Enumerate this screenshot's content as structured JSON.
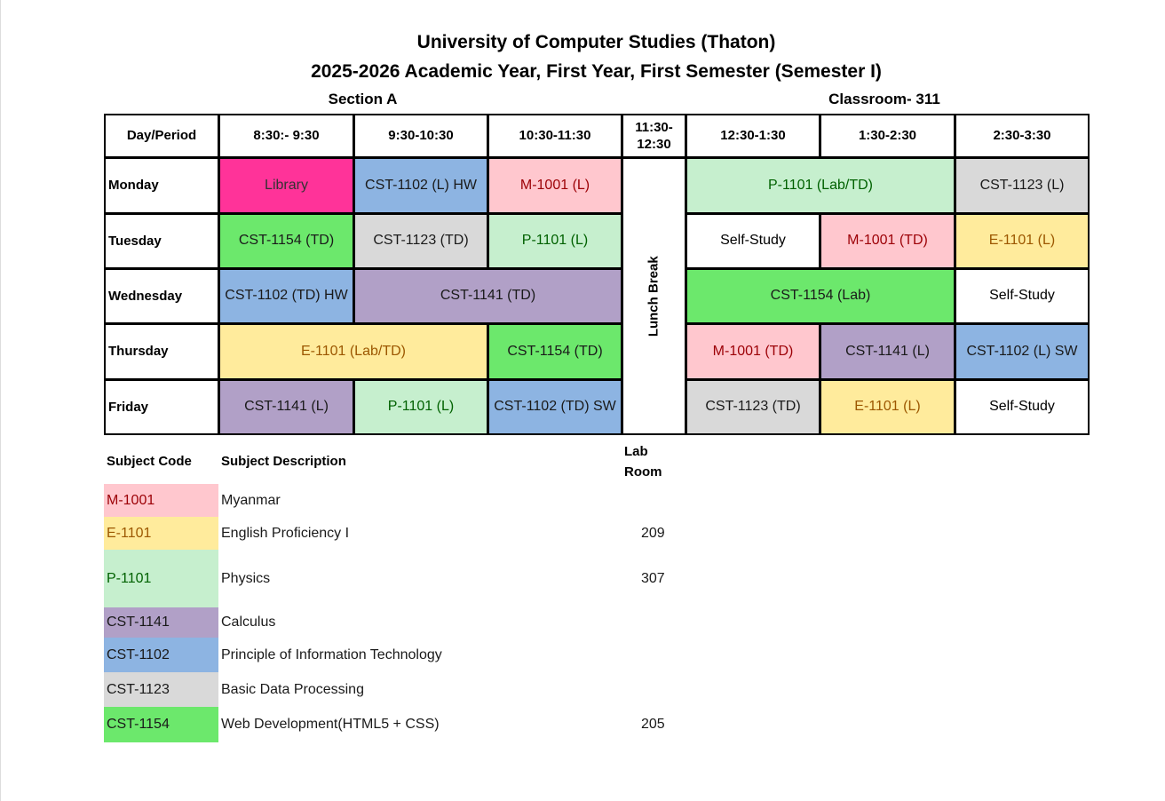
{
  "header": {
    "title": "University of Computer Studies (Thaton)",
    "subtitle": "2025-2026 Academic Year, First Year, First Semester (Semester I)",
    "section": "Section A",
    "classroom": "Classroom- 311"
  },
  "timetable": {
    "columns": [
      "Day/Period",
      "8:30:- 9:30",
      "9:30-10:30",
      "10:30-11:30",
      "11:30-\n12:30",
      "12:30-1:30",
      "1:30-2:30",
      "2:30-3:30"
    ],
    "lunch": "Lunch Break",
    "rows": [
      {
        "day": "Monday",
        "cells": [
          {
            "text": "Library",
            "span": 1,
            "bg": "#ff3399",
            "fg": "#333333"
          },
          {
            "text": "CST-1102 (L) HW",
            "span": 1,
            "bg": "#8db4e2",
            "fg": "#1a1a1a"
          },
          {
            "text": "M-1001 (L)",
            "span": 1,
            "bg": "#ffc7ce",
            "fg": "#9c0006"
          },
          {
            "text": "P-1101 (Lab/TD)",
            "span": 2,
            "bg": "#c6efce",
            "fg": "#006100"
          },
          {
            "text": "CST-1123 (L)",
            "span": 1,
            "bg": "#d9d9d9",
            "fg": "#1a1a1a"
          }
        ]
      },
      {
        "day": "Tuesday",
        "cells": [
          {
            "text": "CST-1154 (TD)",
            "span": 1,
            "bg": "#6ce86c",
            "fg": "#1a1a1a"
          },
          {
            "text": "CST-1123 (TD)",
            "span": 1,
            "bg": "#d9d9d9",
            "fg": "#1a1a1a"
          },
          {
            "text": "P-1101 (L)",
            "span": 1,
            "bg": "#c6efce",
            "fg": "#006100"
          },
          {
            "text": "Self-Study",
            "span": 1,
            "bg": "#ffffff",
            "fg": "#000000"
          },
          {
            "text": "M-1001 (TD)",
            "span": 1,
            "bg": "#ffc7ce",
            "fg": "#9c0006"
          },
          {
            "text": "E-1101 (L)",
            "span": 1,
            "bg": "#ffeb9c",
            "fg": "#9c5700"
          }
        ]
      },
      {
        "day": "Wednesday",
        "cells": [
          {
            "text": "CST-1102 (TD) HW",
            "span": 1,
            "bg": "#8db4e2",
            "fg": "#1a1a1a"
          },
          {
            "text": "CST-1141 (TD)",
            "span": 2,
            "bg": "#b1a0c7",
            "fg": "#1a1a1a"
          },
          {
            "text": "CST-1154 (Lab)",
            "span": 2,
            "bg": "#6ce86c",
            "fg": "#1a1a1a"
          },
          {
            "text": "Self-Study",
            "span": 1,
            "bg": "#ffffff",
            "fg": "#000000"
          }
        ]
      },
      {
        "day": "Thursday",
        "cells": [
          {
            "text": "E-1101 (Lab/TD)",
            "span": 2,
            "bg": "#ffeb9c",
            "fg": "#9c5700"
          },
          {
            "text": "CST-1154 (TD)",
            "span": 1,
            "bg": "#6ce86c",
            "fg": "#1a1a1a"
          },
          {
            "text": "M-1001 (TD)",
            "span": 1,
            "bg": "#ffc7ce",
            "fg": "#9c0006"
          },
          {
            "text": "CST-1141 (L)",
            "span": 1,
            "bg": "#b1a0c7",
            "fg": "#1a1a1a"
          },
          {
            "text": "CST-1102 (L) SW",
            "span": 1,
            "bg": "#8db4e2",
            "fg": "#1a1a1a"
          }
        ]
      },
      {
        "day": "Friday",
        "cells": [
          {
            "text": "CST-1141 (L)",
            "span": 1,
            "bg": "#b1a0c7",
            "fg": "#1a1a1a"
          },
          {
            "text": "P-1101 (L)",
            "span": 1,
            "bg": "#c6efce",
            "fg": "#006100"
          },
          {
            "text": "CST-1102 (TD) SW",
            "span": 1,
            "bg": "#8db4e2",
            "fg": "#1a1a1a"
          },
          {
            "text": "CST-1123 (TD)",
            "span": 1,
            "bg": "#d9d9d9",
            "fg": "#1a1a1a"
          },
          {
            "text": "E-1101 (L)",
            "span": 1,
            "bg": "#ffeb9c",
            "fg": "#9c5700"
          },
          {
            "text": "Self-Study",
            "span": 1,
            "bg": "#ffffff",
            "fg": "#000000"
          }
        ]
      }
    ]
  },
  "legend": {
    "columns": [
      "Subject Code",
      "Subject Description",
      "Lab\nRoom"
    ],
    "rows": [
      {
        "code": "M-1001",
        "description": "Myanmar",
        "bg": "#ffc7ce",
        "fg": "#9c0006"
      },
      {
        "code": "E-1101",
        "description": "English Proficiency I",
        "room": "209",
        "bg": "#ffeb9c",
        "fg": "#9c5700"
      },
      {
        "code": "P-1101",
        "description": "Physics",
        "room": "307",
        "bg": "#c6efce",
        "fg": "#006100"
      },
      {
        "code": "CST-1141",
        "description": "Calculus",
        "bg": "#b1a0c7",
        "fg": "#1a1a1a"
      },
      {
        "code": "CST-1102",
        "description": "Principle of Information Technology",
        "bg": "#8db4e2",
        "fg": "#1a1a1a"
      },
      {
        "code": "CST-1123",
        "description": "Basic Data Processing",
        "bg": "#d9d9d9",
        "fg": "#1a1a1a"
      },
      {
        "code": "CST-1154",
        "description": "Web Development(HTML5 + CSS)",
        "room": "205",
        "bg": "#6ce86c",
        "fg": "#1a1a1a"
      }
    ]
  }
}
